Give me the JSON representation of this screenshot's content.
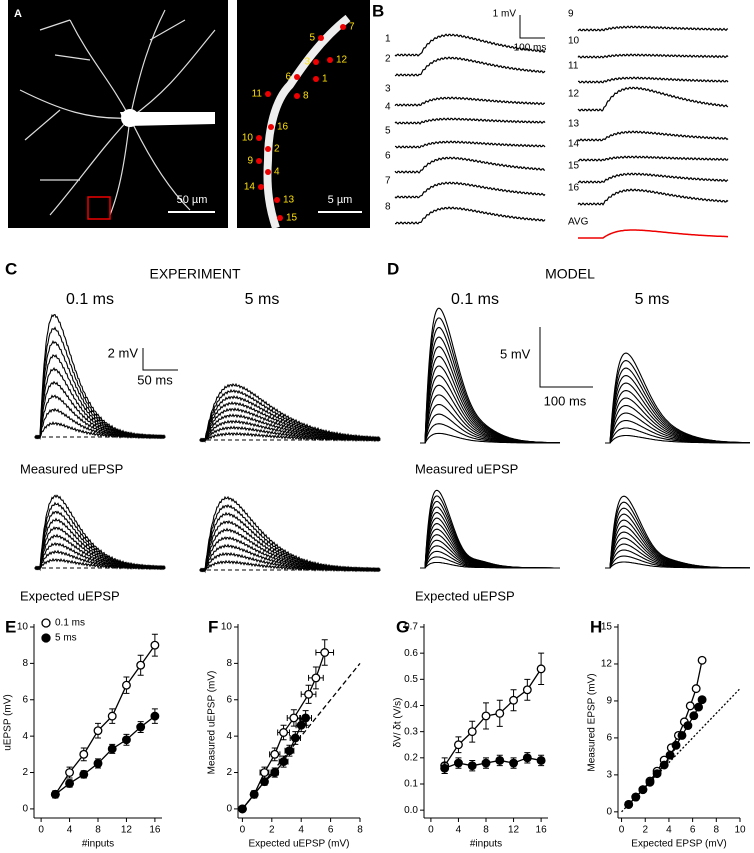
{
  "panel_a": {
    "label": "A",
    "scale_left": "50 µm",
    "scale_right": "5 µm",
    "spines": [
      "7",
      "5",
      "12",
      "3",
      "6",
      "1",
      "11",
      "8",
      "16",
      "10",
      "2",
      "9",
      "4",
      "14",
      "13",
      "15"
    ]
  },
  "panel_b": {
    "label": "B",
    "scale_y": "1 mV",
    "scale_x": "100 ms",
    "traces": [
      "1",
      "2",
      "3",
      "4",
      "5",
      "6",
      "7",
      "8",
      "9",
      "10",
      "11",
      "12",
      "13",
      "14",
      "15",
      "16",
      "AVG"
    ]
  },
  "panel_c": {
    "label": "C",
    "title": "EXPERIMENT",
    "left": "0.1 ms",
    "right": "5 ms",
    "scale_y": "2 mV",
    "scale_x": "50 ms",
    "measured": "Measured uEPSP",
    "expected": "Expected uEPSP"
  },
  "panel_d": {
    "label": "D",
    "title": "MODEL",
    "left": "0.1 ms",
    "right": "5 ms",
    "scale_y": "5 mV",
    "scale_x": "100 ms",
    "measured": "Measured uEPSP",
    "expected": "Expected uEPSP"
  },
  "chart_data": [
    {
      "type": "scatter",
      "panel_label": "E",
      "xlabel": "#inputs",
      "ylabel": "uEPSP (mV)",
      "xlim": [
        -1,
        17
      ],
      "ylim": [
        -0.5,
        10
      ],
      "xticks": [
        0,
        4,
        8,
        12,
        16
      ],
      "yticks": [
        0,
        2,
        4,
        6,
        8,
        10
      ],
      "legend": "upper left",
      "series": [
        {
          "name": "0.1 ms",
          "color": "#000000",
          "fill": "#ffffff",
          "x": [
            2,
            4,
            6,
            8,
            10,
            12,
            14,
            16
          ],
          "values": [
            0.8,
            2.0,
            3.0,
            4.3,
            5.1,
            6.8,
            7.9,
            9.0
          ],
          "errors": [
            0.2,
            0.3,
            0.35,
            0.4,
            0.4,
            0.45,
            0.55,
            0.6
          ]
        },
        {
          "name": "5 ms",
          "color": "#000000",
          "fill": "#000000",
          "x": [
            2,
            4,
            6,
            8,
            10,
            12,
            14,
            16
          ],
          "values": [
            0.8,
            1.4,
            1.9,
            2.5,
            3.3,
            3.8,
            4.5,
            5.1
          ],
          "errors": [
            0.15,
            0.2,
            0.2,
            0.25,
            0.25,
            0.3,
            0.3,
            0.4
          ]
        }
      ]
    },
    {
      "type": "scatter",
      "panel_label": "F",
      "xlabel": "Expected uEPSP (mV)",
      "ylabel": "Measured uEPSP (mV)",
      "xlim": [
        -0.3,
        8
      ],
      "ylim": [
        -0.5,
        10
      ],
      "xticks": [
        0,
        2,
        4,
        6,
        8
      ],
      "yticks": [
        0,
        2,
        4,
        6,
        8,
        10
      ],
      "unity": "dashed",
      "series": [
        {
          "name": "0.1 ms",
          "color": "#000000",
          "fill": "#ffffff",
          "x": [
            0,
            0.8,
            1.5,
            2.2,
            2.8,
            3.5,
            4.5,
            5.0,
            5.6
          ],
          "values": [
            0,
            0.8,
            2.0,
            3.0,
            4.2,
            5.0,
            6.3,
            7.2,
            8.6
          ],
          "errors": [
            0.1,
            0.2,
            0.3,
            0.35,
            0.4,
            0.45,
            0.5,
            0.6,
            0.7
          ],
          "xerrors": [
            0.1,
            0.2,
            0.3,
            0.35,
            0.4,
            0.45,
            0.5,
            0.5,
            0.6
          ]
        },
        {
          "name": "5 ms",
          "color": "#000000",
          "fill": "#000000",
          "x": [
            0,
            0.8,
            1.5,
            2.2,
            2.8,
            3.2,
            3.6,
            4.0,
            4.3
          ],
          "values": [
            0,
            0.8,
            1.5,
            2.0,
            2.6,
            3.2,
            3.9,
            4.6,
            5.0
          ],
          "errors": [
            0.1,
            0.15,
            0.2,
            0.25,
            0.3,
            0.3,
            0.35,
            0.35,
            0.4
          ],
          "xerrors": [
            0.1,
            0.15,
            0.2,
            0.25,
            0.3,
            0.3,
            0.35,
            0.35,
            0.4
          ]
        }
      ]
    },
    {
      "type": "scatter",
      "panel_label": "G",
      "xlabel": "#inputs",
      "ylabel": "δV/ δt (V/s)",
      "xlim": [
        -1,
        17
      ],
      "ylim": [
        -0.03,
        0.7
      ],
      "xticks": [
        0,
        4,
        8,
        12,
        16
      ],
      "yticks": [
        {
          "value": 0,
          "label": "0.0"
        },
        0.1,
        0.2,
        0.3,
        0.4,
        0.5,
        0.6,
        0.7
      ],
      "series": [
        {
          "name": "0.1 ms",
          "color": "#000000",
          "fill": "#ffffff",
          "x": [
            2,
            4,
            6,
            8,
            10,
            12,
            14,
            16
          ],
          "values": [
            0.17,
            0.25,
            0.3,
            0.36,
            0.37,
            0.42,
            0.46,
            0.54
          ],
          "errors": [
            0.03,
            0.03,
            0.04,
            0.05,
            0.05,
            0.04,
            0.04,
            0.06
          ]
        },
        {
          "name": "5 ms",
          "color": "#000000",
          "fill": "#000000",
          "x": [
            2,
            4,
            6,
            8,
            10,
            12,
            14,
            16
          ],
          "values": [
            0.16,
            0.18,
            0.17,
            0.18,
            0.19,
            0.18,
            0.2,
            0.19
          ],
          "errors": [
            0.02,
            0.02,
            0.02,
            0.02,
            0.02,
            0.02,
            0.02,
            0.02
          ]
        }
      ]
    },
    {
      "type": "scatter",
      "panel_label": "H",
      "xlabel": "Expected EPSP (mV)",
      "ylabel": "Measured EPSP (mV)",
      "xlim": [
        -0.3,
        10
      ],
      "ylim": [
        -0.5,
        15
      ],
      "xticks": [
        0,
        2,
        4,
        6,
        8,
        10
      ],
      "yticks": [
        0,
        3,
        6,
        9,
        12,
        15
      ],
      "unity": "dotted",
      "series": [
        {
          "name": "0.1 ms",
          "color": "#000000",
          "fill": "#ffffff",
          "x": [
            0.6,
            1.2,
            1.8,
            2.4,
            3.0,
            3.6,
            4.2,
            4.8,
            5.3,
            5.8,
            6.3,
            6.8
          ],
          "values": [
            0.6,
            1.2,
            1.8,
            2.5,
            3.3,
            4.2,
            5.2,
            6.2,
            7.3,
            8.6,
            10.0,
            12.3
          ]
        },
        {
          "name": "5 ms",
          "color": "#000000",
          "fill": "#000000",
          "x": [
            0.6,
            1.2,
            1.8,
            2.4,
            3.0,
            3.6,
            4.1,
            4.6,
            5.1,
            5.6,
            6.1,
            6.5,
            6.8
          ],
          "values": [
            0.6,
            1.2,
            1.8,
            2.4,
            3.1,
            3.8,
            4.6,
            5.4,
            6.2,
            7.0,
            7.8,
            8.5,
            9.1
          ]
        }
      ]
    }
  ]
}
